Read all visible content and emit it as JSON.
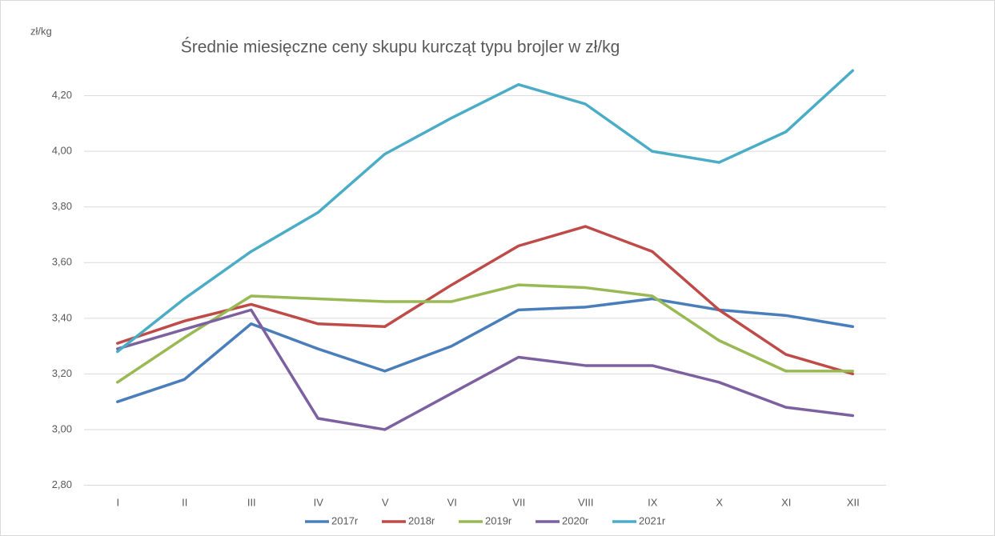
{
  "chart_data": {
    "type": "line",
    "title": "Średnie miesięczne ceny skupu kurcząt typu brojler w zł/kg",
    "y_label": "zł/kg",
    "categories": [
      "I",
      "II",
      "III",
      "IV",
      "V",
      "VI",
      "VII",
      "VIII",
      "IX",
      "X",
      "XI",
      "XII"
    ],
    "series": [
      {
        "name": "2017r",
        "color": "#4a7ebb",
        "values": [
          3.1,
          3.18,
          3.38,
          3.29,
          3.21,
          3.3,
          3.43,
          3.44,
          3.47,
          3.43,
          3.41,
          3.37
        ]
      },
      {
        "name": "2018r",
        "color": "#be4b48",
        "values": [
          3.31,
          3.39,
          3.45,
          3.38,
          3.37,
          3.52,
          3.66,
          3.73,
          3.64,
          3.43,
          3.27,
          3.2
        ]
      },
      {
        "name": "2019r",
        "color": "#98b954",
        "values": [
          3.17,
          3.33,
          3.48,
          3.47,
          3.46,
          3.46,
          3.52,
          3.51,
          3.48,
          3.32,
          3.21,
          3.21
        ]
      },
      {
        "name": "2020r",
        "color": "#7d60a0",
        "values": [
          3.29,
          3.36,
          3.43,
          3.04,
          3.0,
          3.13,
          3.26,
          3.23,
          3.23,
          3.17,
          3.08,
          3.05
        ]
      },
      {
        "name": "2021r",
        "color": "#4bacc6",
        "values": [
          3.28,
          3.47,
          3.64,
          3.78,
          3.99,
          4.12,
          4.24,
          4.17,
          4.0,
          3.96,
          4.07,
          4.29
        ]
      }
    ],
    "ylim": [
      2.8,
      4.4
    ],
    "yticks": [
      {
        "value": 2.8,
        "label": "2,80"
      },
      {
        "value": 3.0,
        "label": "3,00"
      },
      {
        "value": 3.2,
        "label": "3,20"
      },
      {
        "value": 3.4,
        "label": "3,40"
      },
      {
        "value": 3.6,
        "label": "3,60"
      },
      {
        "value": 3.8,
        "label": "3,80"
      },
      {
        "value": 4.0,
        "label": "4,00"
      },
      {
        "value": 4.2,
        "label": "4,20"
      }
    ],
    "grid": true,
    "legend": "bottom"
  }
}
